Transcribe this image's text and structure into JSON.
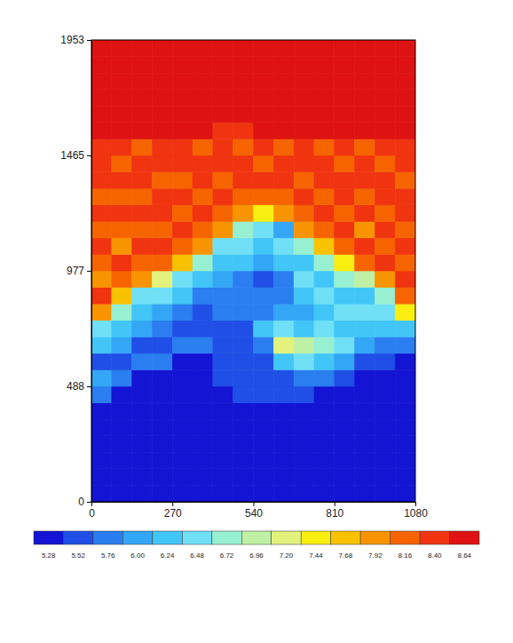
{
  "chart_data": {
    "type": "heatmap",
    "xlim": [
      0,
      1080
    ],
    "ylim": [
      0,
      1953
    ],
    "xticks": [
      0,
      270,
      540,
      810,
      1080
    ],
    "yticks": [
      0,
      488,
      977,
      1465,
      1953
    ],
    "x": [
      0,
      67.5,
      135,
      202.5,
      270,
      337.5,
      405,
      472.5,
      540,
      607.5,
      675,
      742.5,
      810,
      877.5,
      945,
      1012.5,
      1080
    ],
    "y": [
      0,
      69.75,
      139.5,
      209.25,
      279,
      348.75,
      418.5,
      488.25,
      558,
      627.75,
      697.5,
      767.25,
      837,
      906.75,
      976.5,
      1046.25,
      1116,
      1185.75,
      1255.5,
      1325.25,
      1395,
      1464.75,
      1534.5,
      1604.25,
      1674,
      1743.75,
      1813.5,
      1883.25,
      1953
    ],
    "z": [
      [
        5.28,
        5.28,
        5.28,
        5.28,
        5.28,
        5.28,
        5.28,
        5.28,
        5.28,
        5.28,
        5.28,
        5.28,
        5.28,
        5.28,
        5.28,
        5.28
      ],
      [
        5.28,
        5.28,
        5.28,
        5.28,
        5.28,
        5.28,
        5.28,
        5.28,
        5.28,
        5.28,
        5.28,
        5.28,
        5.28,
        5.28,
        5.28,
        5.28
      ],
      [
        5.28,
        5.28,
        5.28,
        5.28,
        5.28,
        5.28,
        5.28,
        5.28,
        5.28,
        5.28,
        5.28,
        5.28,
        5.28,
        5.28,
        5.28,
        5.28
      ],
      [
        5.28,
        5.28,
        5.28,
        5.28,
        5.28,
        5.28,
        5.28,
        5.28,
        5.28,
        5.28,
        5.28,
        5.28,
        5.28,
        5.28,
        5.28,
        5.28
      ],
      [
        5.28,
        5.28,
        5.28,
        5.28,
        5.28,
        5.28,
        5.28,
        5.28,
        5.28,
        5.28,
        5.28,
        5.28,
        5.28,
        5.28,
        5.28,
        5.28
      ],
      [
        5.28,
        5.28,
        5.28,
        5.28,
        5.28,
        5.28,
        5.28,
        5.28,
        5.28,
        5.28,
        5.28,
        5.28,
        5.28,
        5.28,
        5.28,
        5.28
      ],
      [
        5.76,
        5.28,
        5.28,
        5.28,
        5.28,
        5.28,
        5.28,
        5.52,
        5.52,
        5.52,
        5.52,
        5.28,
        5.28,
        5.28,
        5.28,
        5.28
      ],
      [
        6.0,
        5.76,
        5.28,
        5.28,
        5.28,
        5.28,
        5.52,
        5.52,
        5.52,
        5.52,
        5.76,
        5.76,
        5.52,
        5.28,
        5.28,
        5.28
      ],
      [
        5.52,
        5.52,
        5.76,
        5.76,
        5.28,
        5.28,
        5.52,
        5.52,
        5.52,
        6.24,
        6.48,
        6.24,
        6.0,
        5.52,
        5.52,
        5.28
      ],
      [
        6.24,
        6.0,
        5.52,
        5.52,
        5.76,
        5.76,
        5.52,
        5.52,
        5.76,
        7.2,
        6.96,
        6.72,
        6.48,
        6.0,
        5.76,
        5.76
      ],
      [
        6.48,
        6.24,
        6.0,
        5.76,
        5.52,
        5.52,
        5.52,
        5.52,
        6.24,
        6.48,
        6.24,
        6.48,
        6.24,
        6.24,
        6.24,
        6.24
      ],
      [
        7.92,
        6.72,
        6.24,
        6.0,
        5.76,
        5.52,
        5.76,
        5.76,
        5.76,
        6.0,
        6.0,
        6.24,
        6.48,
        6.48,
        6.48,
        7.44
      ],
      [
        8.4,
        7.68,
        6.48,
        6.48,
        6.24,
        5.76,
        5.76,
        5.76,
        5.76,
        5.76,
        6.24,
        6.48,
        6.24,
        6.24,
        6.72,
        8.16
      ],
      [
        7.92,
        8.16,
        7.92,
        7.2,
        6.48,
        6.24,
        6.0,
        5.76,
        5.52,
        5.76,
        6.48,
        6.24,
        6.72,
        6.96,
        7.92,
        8.4
      ],
      [
        8.16,
        8.4,
        8.16,
        8.16,
        7.68,
        6.72,
        6.24,
        6.24,
        6.0,
        6.24,
        6.24,
        6.72,
        7.44,
        8.16,
        8.4,
        8.16
      ],
      [
        8.4,
        7.92,
        8.4,
        8.4,
        8.16,
        7.92,
        6.48,
        6.48,
        6.24,
        6.48,
        6.72,
        7.68,
        8.16,
        8.4,
        8.16,
        8.4
      ],
      [
        8.16,
        8.16,
        8.16,
        8.16,
        8.4,
        8.16,
        7.92,
        6.72,
        6.48,
        6.0,
        7.92,
        8.16,
        8.4,
        7.92,
        8.4,
        8.16
      ],
      [
        8.4,
        8.4,
        8.4,
        8.4,
        8.16,
        8.4,
        8.16,
        7.92,
        7.44,
        7.92,
        8.16,
        8.4,
        8.16,
        8.4,
        8.16,
        8.4
      ],
      [
        8.16,
        8.16,
        8.16,
        8.4,
        8.4,
        8.16,
        8.4,
        8.16,
        8.16,
        8.16,
        8.4,
        8.16,
        8.4,
        8.16,
        8.4,
        8.4
      ],
      [
        8.4,
        8.4,
        8.4,
        8.16,
        8.16,
        8.4,
        8.16,
        8.4,
        8.4,
        8.4,
        8.16,
        8.4,
        8.4,
        8.4,
        8.4,
        8.16
      ],
      [
        8.4,
        8.16,
        8.4,
        8.4,
        8.4,
        8.4,
        8.4,
        8.4,
        8.16,
        8.4,
        8.4,
        8.4,
        8.16,
        8.4,
        8.16,
        8.4
      ],
      [
        8.4,
        8.4,
        8.16,
        8.4,
        8.4,
        8.16,
        8.4,
        8.16,
        8.4,
        8.16,
        8.4,
        8.16,
        8.4,
        8.16,
        8.4,
        8.4
      ],
      [
        8.64,
        8.64,
        8.64,
        8.64,
        8.64,
        8.64,
        8.4,
        8.4,
        8.64,
        8.64,
        8.64,
        8.64,
        8.64,
        8.64,
        8.64,
        8.64
      ],
      [
        8.64,
        8.64,
        8.64,
        8.64,
        8.64,
        8.64,
        8.64,
        8.64,
        8.64,
        8.64,
        8.64,
        8.64,
        8.64,
        8.64,
        8.64,
        8.64
      ],
      [
        8.64,
        8.64,
        8.64,
        8.64,
        8.64,
        8.64,
        8.64,
        8.64,
        8.64,
        8.64,
        8.64,
        8.64,
        8.64,
        8.64,
        8.64,
        8.64
      ],
      [
        8.64,
        8.64,
        8.64,
        8.64,
        8.64,
        8.64,
        8.64,
        8.64,
        8.64,
        8.64,
        8.64,
        8.64,
        8.64,
        8.64,
        8.64,
        8.64
      ],
      [
        8.64,
        8.64,
        8.64,
        8.64,
        8.64,
        8.64,
        8.64,
        8.64,
        8.64,
        8.64,
        8.64,
        8.64,
        8.64,
        8.64,
        8.64,
        8.64
      ],
      [
        8.64,
        8.64,
        8.64,
        8.64,
        8.64,
        8.64,
        8.64,
        8.64,
        8.64,
        8.64,
        8.64,
        8.64,
        8.64,
        8.64,
        8.64,
        8.64
      ]
    ],
    "colorbar": {
      "ticks": [
        5.28,
        5.52,
        5.76,
        {
          "value": 6,
          "label": "6.00"
        },
        6.24,
        6.48,
        6.72,
        6.96,
        {
          "value": 7.2,
          "label": "7.20"
        },
        7.44,
        7.68,
        7.92,
        8.16,
        {
          "value": 8.4,
          "label": "8.40"
        },
        8.64
      ],
      "colors": [
        "#1414d4",
        "#1f4fe6",
        "#2a7ef0",
        "#33a6f6",
        "#42c6f8",
        "#6fe0f6",
        "#98f0d2",
        "#bff0a4",
        "#e2f27c",
        "#f8ee10",
        "#f8c200",
        "#f89400",
        "#f66400",
        "#f03410",
        "#de1212"
      ]
    }
  }
}
